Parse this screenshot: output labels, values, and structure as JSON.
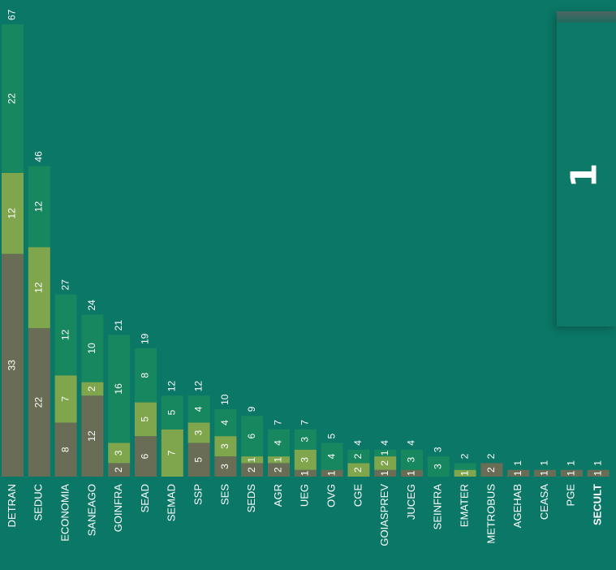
{
  "chart_data": {
    "type": "bar",
    "stacked": true,
    "orientation": "vertical",
    "categories": [
      "DETRAN",
      "SEDUC",
      "ECONOMIA",
      "SANEAGO",
      "GOINFRA",
      "SEAD",
      "SEMAD",
      "SSP",
      "SES",
      "SEDS",
      "AGR",
      "UEG",
      "OVG",
      "CGE",
      "GOIASPREV",
      "JUCEG",
      "SEINFRA",
      "EMATER",
      "METROBUS",
      "AGEHAB",
      "CEASA",
      "PGE",
      "SECULT"
    ],
    "highlighted_category": "SECULT",
    "series": [
      {
        "values": [
          33,
          22,
          8,
          12,
          2,
          6,
          0,
          5,
          3,
          2,
          2,
          1,
          1,
          0,
          1,
          1,
          0,
          0,
          2,
          1,
          1,
          1,
          1
        ],
        "color": "#6a6d55"
      },
      {
        "values": [
          12,
          12,
          7,
          2,
          3,
          5,
          7,
          3,
          3,
          1,
          1,
          3,
          0,
          2,
          2,
          0,
          0,
          1,
          0,
          0,
          0,
          0,
          0
        ],
        "color": "#7fa54d"
      },
      {
        "values": [
          22,
          12,
          12,
          10,
          16,
          8,
          5,
          4,
          4,
          6,
          4,
          3,
          4,
          2,
          1,
          3,
          3,
          1,
          0,
          0,
          0,
          0,
          0
        ],
        "color": "#17875f"
      }
    ],
    "segment_labels": [
      [
        "33",
        "12",
        "22"
      ],
      [
        "22",
        "12",
        "12"
      ],
      [
        "8",
        "7",
        "12"
      ],
      [
        "12",
        "2",
        "10"
      ],
      [
        "2",
        "3",
        "16"
      ],
      [
        "6",
        "5",
        "8"
      ],
      [
        "7",
        "5"
      ],
      [
        "5",
        "3",
        "4"
      ],
      [
        "3",
        "3",
        "4"
      ],
      [
        "2",
        "1",
        "6"
      ],
      [
        "2",
        "1",
        "4"
      ],
      [
        "1",
        "3",
        "3"
      ],
      [
        "1",
        "4"
      ],
      [
        "2",
        "2"
      ],
      [
        "1",
        "2",
        "1"
      ],
      [
        "1",
        "3"
      ],
      [
        "3"
      ],
      [
        "1"
      ],
      [
        "2"
      ],
      [
        "1"
      ],
      [
        "1"
      ],
      [
        "1"
      ],
      [
        "1"
      ]
    ],
    "totals": [
      67,
      46,
      27,
      24,
      21,
      19,
      12,
      12,
      10,
      9,
      7,
      7,
      5,
      4,
      4,
      4,
      3,
      2,
      2,
      1,
      1,
      1,
      1
    ],
    "value_axis_range": [
      0,
      67
    ],
    "grid": false,
    "legend": "none"
  },
  "badge": {
    "text": "1"
  },
  "colors": {
    "background": "#0b7766",
    "label": "#ffffff"
  }
}
